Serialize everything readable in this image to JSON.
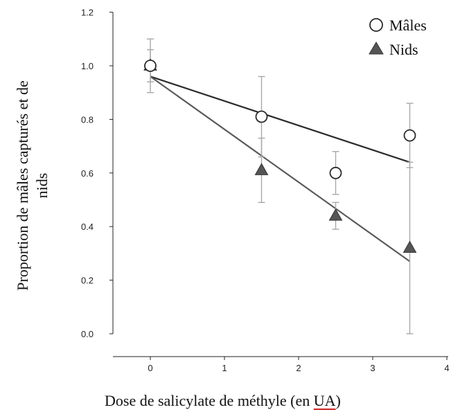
{
  "chart_data": {
    "type": "scatter",
    "xlabel": "Dose de salicylate de méthyle (en UA)",
    "xlabel_underlined_word": "UA",
    "ylabel_lines": [
      "Proportion de mâles capturés et de",
      "nids"
    ],
    "xlim": [
      -0.5,
      4
    ],
    "ylim": [
      0,
      1.2
    ],
    "x_ticks": [
      "0",
      "1",
      "2",
      "3",
      "4"
    ],
    "y_ticks": [
      "0.0",
      "0.2",
      "0.4",
      "0.6",
      "0.8",
      "1.0",
      "1.2"
    ],
    "legend_position": "top-right",
    "grid": false,
    "series": [
      {
        "name": "Mâles",
        "marker": "open-circle",
        "line_color": "#2b2b2b",
        "fill_color": "#ffffff",
        "x": [
          0,
          1.5,
          2.5,
          3.5
        ],
        "y": [
          1.0,
          0.81,
          0.6,
          0.74
        ],
        "error": [
          0.1,
          0.15,
          0.08,
          0.12
        ],
        "fit": {
          "x": [
            0,
            3.5
          ],
          "y": [
            0.96,
            0.64
          ]
        }
      },
      {
        "name": "Nids",
        "marker": "filled-triangle",
        "line_color": "#5a5a5a",
        "fill_color": "#555555",
        "x": [
          0,
          1.5,
          2.5,
          3.5
        ],
        "y": [
          1.0,
          0.61,
          0.44,
          0.32
        ],
        "error": [
          0.06,
          0.12,
          0.05,
          0.32
        ],
        "fit": {
          "x": [
            0,
            3.5
          ],
          "y": [
            0.96,
            0.27
          ]
        }
      }
    ],
    "error_bar_color": "#a8a8a8",
    "underline_color": "#cc2222"
  }
}
